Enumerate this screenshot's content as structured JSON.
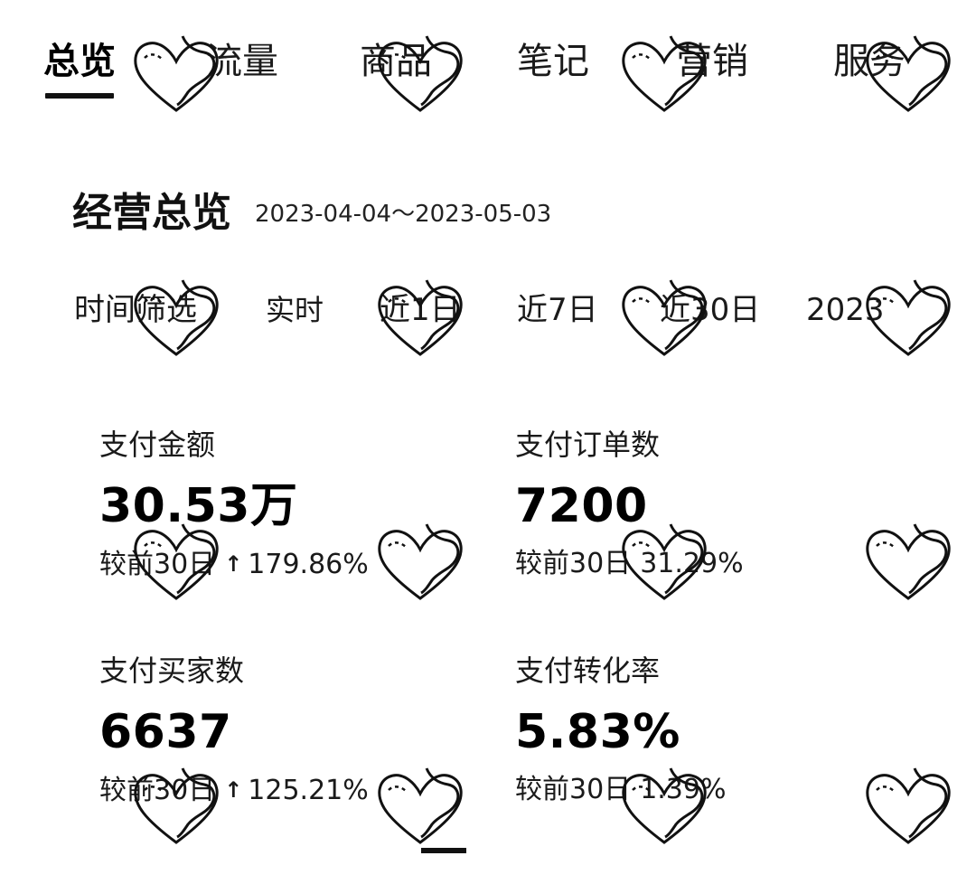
{
  "tabs": [
    {
      "label": "总览",
      "active": true
    },
    {
      "label": "流量",
      "active": false
    },
    {
      "label": "商品",
      "active": false
    },
    {
      "label": "笔记",
      "active": false
    },
    {
      "label": "营销",
      "active": false
    },
    {
      "label": "服务",
      "active": false
    }
  ],
  "overview": {
    "title": "经营总览",
    "date_range": "2023-04-04～2023-05-03"
  },
  "time_filter": {
    "label": "时间筛选",
    "options": [
      "实时",
      "近1日",
      "近7日",
      "近30日",
      "2023"
    ]
  },
  "metrics": [
    {
      "label": "支付金额",
      "value": "30.53万",
      "compare_label": "较前30日",
      "direction": "up",
      "change": "179.86%"
    },
    {
      "label": "支付订单数",
      "value": "7200",
      "compare_label": "较前30日",
      "direction": "",
      "change": "31.29%"
    },
    {
      "label": "支付买家数",
      "value": "6637",
      "compare_label": "较前30日",
      "direction": "up",
      "change": "125.21%"
    },
    {
      "label": "支付转化率",
      "value": "5.83%",
      "compare_label": "较前30日",
      "direction": "",
      "change": "1.39%"
    }
  ],
  "icons": {
    "trend_up": "arrow-up-icon",
    "watermark": "heart-watermark-icon"
  },
  "colors": {
    "text": "#111111",
    "background": "#ffffff",
    "accent": "#111111"
  }
}
